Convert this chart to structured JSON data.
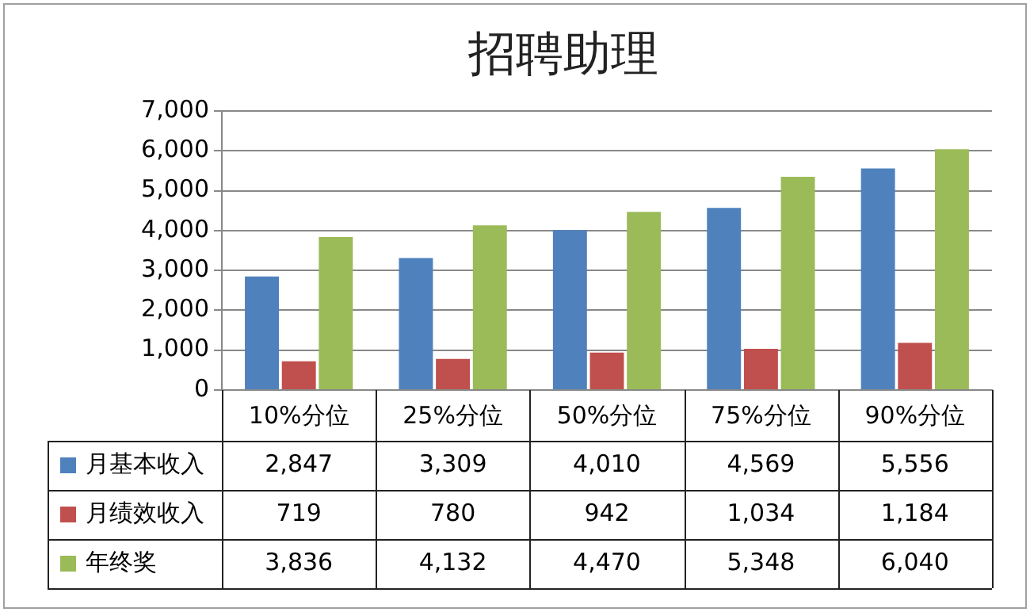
{
  "chart_data": {
    "type": "bar",
    "title": "招聘助理",
    "categories": [
      "10%分位",
      "25%分位",
      "50%分位",
      "75%分位",
      "90%分位"
    ],
    "series": [
      {
        "name": "月基本收入",
        "color": "#4f81bd",
        "values": [
          2847,
          3309,
          4010,
          4569,
          5556
        ],
        "value_labels": [
          "2,847",
          "3,309",
          "4,010",
          "4,569",
          "5,556"
        ]
      },
      {
        "name": "月绩效收入",
        "color": "#c0504d",
        "values": [
          719,
          780,
          942,
          1034,
          1184
        ],
        "value_labels": [
          "719",
          "780",
          "942",
          "1,034",
          "1,184"
        ]
      },
      {
        "name": "年终奖",
        "color": "#9bbb59",
        "values": [
          3836,
          4132,
          4470,
          5348,
          6040
        ],
        "value_labels": [
          "3,836",
          "4,132",
          "4,470",
          "5,348",
          "6,040"
        ]
      }
    ],
    "ylim": [
      0,
      7000
    ],
    "yticks": [
      {
        "value": 0,
        "label": "0"
      },
      {
        "value": 1000,
        "label": "1,000"
      },
      {
        "value": 2000,
        "label": "2,000"
      },
      {
        "value": 3000,
        "label": "3,000"
      },
      {
        "value": 4000,
        "label": "4,000"
      },
      {
        "value": 5000,
        "label": "5,000"
      },
      {
        "value": 6000,
        "label": "6,000"
      },
      {
        "value": 7000,
        "label": "7,000"
      }
    ],
    "grid": "y",
    "legend": "bottom"
  }
}
